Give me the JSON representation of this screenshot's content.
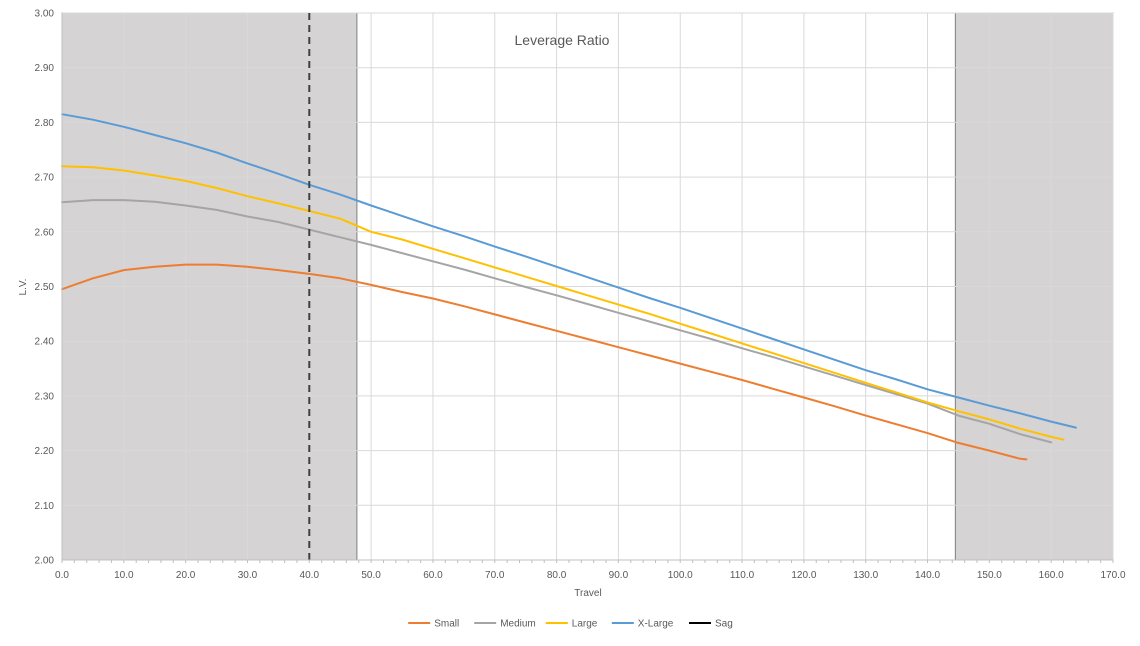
{
  "chart_data": {
    "type": "line",
    "title": "Leverage Ratio",
    "xlabel": "Travel",
    "ylabel": "L.V.",
    "xlim": [
      0,
      170
    ],
    "ylim": [
      2.0,
      3.0
    ],
    "x_ticks": [
      "0.0",
      "10.0",
      "20.0",
      "30.0",
      "40.0",
      "50.0",
      "60.0",
      "70.0",
      "80.0",
      "90.0",
      "100.0",
      "110.0",
      "120.0",
      "130.0",
      "140.0",
      "150.0",
      "160.0",
      "170.0"
    ],
    "y_ticks": [
      "2.00",
      "2.10",
      "2.20",
      "2.30",
      "2.40",
      "2.50",
      "2.60",
      "2.70",
      "2.80",
      "2.90",
      "3.00"
    ],
    "grid": true,
    "legend_position": "bottom",
    "shaded_ranges": [
      {
        "x_start": 0,
        "x_end": 47.7,
        "color": "#d6d3d4"
      },
      {
        "x_start": 144.5,
        "x_end": 170,
        "color": "#d6d3d4"
      }
    ],
    "series": [
      {
        "name": "Small",
        "color": "#ed7d31",
        "points": [
          [
            0,
            2.495
          ],
          [
            5,
            2.515
          ],
          [
            10,
            2.53
          ],
          [
            15,
            2.536
          ],
          [
            20,
            2.54
          ],
          [
            25,
            2.54
          ],
          [
            30,
            2.536
          ],
          [
            35,
            2.53
          ],
          [
            40,
            2.523
          ],
          [
            45,
            2.515
          ],
          [
            50,
            2.503
          ],
          [
            55,
            2.49
          ],
          [
            60,
            2.478
          ],
          [
            65,
            2.464
          ],
          [
            70,
            2.449
          ],
          [
            75,
            2.434
          ],
          [
            80,
            2.419
          ],
          [
            85,
            2.404
          ],
          [
            90,
            2.389
          ],
          [
            95,
            2.374
          ],
          [
            100,
            2.359
          ],
          [
            105,
            2.344
          ],
          [
            110,
            2.329
          ],
          [
            115,
            2.313
          ],
          [
            120,
            2.297
          ],
          [
            125,
            2.281
          ],
          [
            130,
            2.264
          ],
          [
            135,
            2.248
          ],
          [
            140,
            2.232
          ],
          [
            145,
            2.214
          ],
          [
            150,
            2.2
          ],
          [
            155,
            2.185
          ],
          [
            156,
            2.184
          ]
        ]
      },
      {
        "name": "Medium",
        "color": "#a5a5a5",
        "points": [
          [
            0,
            2.654
          ],
          [
            5,
            2.658
          ],
          [
            10,
            2.658
          ],
          [
            15,
            2.655
          ],
          [
            20,
            2.648
          ],
          [
            25,
            2.64
          ],
          [
            30,
            2.628
          ],
          [
            35,
            2.618
          ],
          [
            40,
            2.604
          ],
          [
            45,
            2.59
          ],
          [
            50,
            2.576
          ],
          [
            55,
            2.561
          ],
          [
            60,
            2.546
          ],
          [
            65,
            2.531
          ],
          [
            70,
            2.515
          ],
          [
            75,
            2.499
          ],
          [
            80,
            2.484
          ],
          [
            85,
            2.468
          ],
          [
            90,
            2.452
          ],
          [
            95,
            2.436
          ],
          [
            100,
            2.42
          ],
          [
            105,
            2.404
          ],
          [
            110,
            2.387
          ],
          [
            115,
            2.371
          ],
          [
            120,
            2.354
          ],
          [
            125,
            2.337
          ],
          [
            130,
            2.32
          ],
          [
            135,
            2.303
          ],
          [
            140,
            2.286
          ],
          [
            145,
            2.264
          ],
          [
            150,
            2.249
          ],
          [
            155,
            2.23
          ],
          [
            160,
            2.215
          ]
        ]
      },
      {
        "name": "Large",
        "color": "#ffc000",
        "points": [
          [
            0,
            2.72
          ],
          [
            5,
            2.718
          ],
          [
            10,
            2.712
          ],
          [
            15,
            2.703
          ],
          [
            20,
            2.693
          ],
          [
            25,
            2.68
          ],
          [
            30,
            2.665
          ],
          [
            35,
            2.652
          ],
          [
            40,
            2.638
          ],
          [
            45,
            2.624
          ],
          [
            50,
            2.6
          ],
          [
            55,
            2.586
          ],
          [
            60,
            2.569
          ],
          [
            65,
            2.552
          ],
          [
            70,
            2.535
          ],
          [
            75,
            2.518
          ],
          [
            80,
            2.501
          ],
          [
            85,
            2.484
          ],
          [
            90,
            2.467
          ],
          [
            95,
            2.45
          ],
          [
            100,
            2.432
          ],
          [
            105,
            2.414
          ],
          [
            110,
            2.396
          ],
          [
            115,
            2.378
          ],
          [
            120,
            2.36
          ],
          [
            125,
            2.342
          ],
          [
            130,
            2.324
          ],
          [
            135,
            2.306
          ],
          [
            140,
            2.288
          ],
          [
            145,
            2.272
          ],
          [
            150,
            2.257
          ],
          [
            155,
            2.24
          ],
          [
            160,
            2.225
          ],
          [
            162,
            2.22
          ]
        ]
      },
      {
        "name": "X-Large",
        "color": "#5b9bd5",
        "points": [
          [
            0,
            2.815
          ],
          [
            5,
            2.805
          ],
          [
            10,
            2.792
          ],
          [
            15,
            2.777
          ],
          [
            20,
            2.762
          ],
          [
            25,
            2.745
          ],
          [
            30,
            2.725
          ],
          [
            35,
            2.706
          ],
          [
            40,
            2.686
          ],
          [
            45,
            2.668
          ],
          [
            50,
            2.648
          ],
          [
            55,
            2.629
          ],
          [
            60,
            2.61
          ],
          [
            65,
            2.592
          ],
          [
            70,
            2.573
          ],
          [
            75,
            2.555
          ],
          [
            80,
            2.536
          ],
          [
            85,
            2.517
          ],
          [
            90,
            2.498
          ],
          [
            95,
            2.479
          ],
          [
            100,
            2.461
          ],
          [
            105,
            2.442
          ],
          [
            110,
            2.423
          ],
          [
            115,
            2.404
          ],
          [
            120,
            2.385
          ],
          [
            125,
            2.366
          ],
          [
            130,
            2.347
          ],
          [
            135,
            2.33
          ],
          [
            140,
            2.312
          ],
          [
            145,
            2.297
          ],
          [
            150,
            2.282
          ],
          [
            155,
            2.268
          ],
          [
            160,
            2.253
          ],
          [
            164,
            2.242
          ]
        ]
      }
    ],
    "sag": {
      "name": "Sag",
      "x": 40,
      "color": "#000000",
      "style": "dashed"
    }
  }
}
